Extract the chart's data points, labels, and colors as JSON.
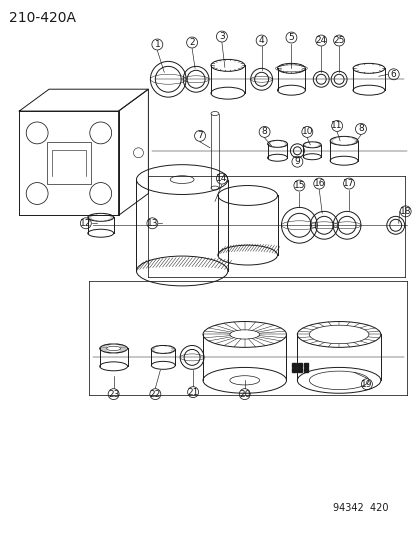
{
  "title": "210-420A",
  "footer": "94342  420",
  "bg_color": "#ffffff",
  "line_color": "#1a1a1a",
  "title_fontsize": 10,
  "footer_fontsize": 7
}
